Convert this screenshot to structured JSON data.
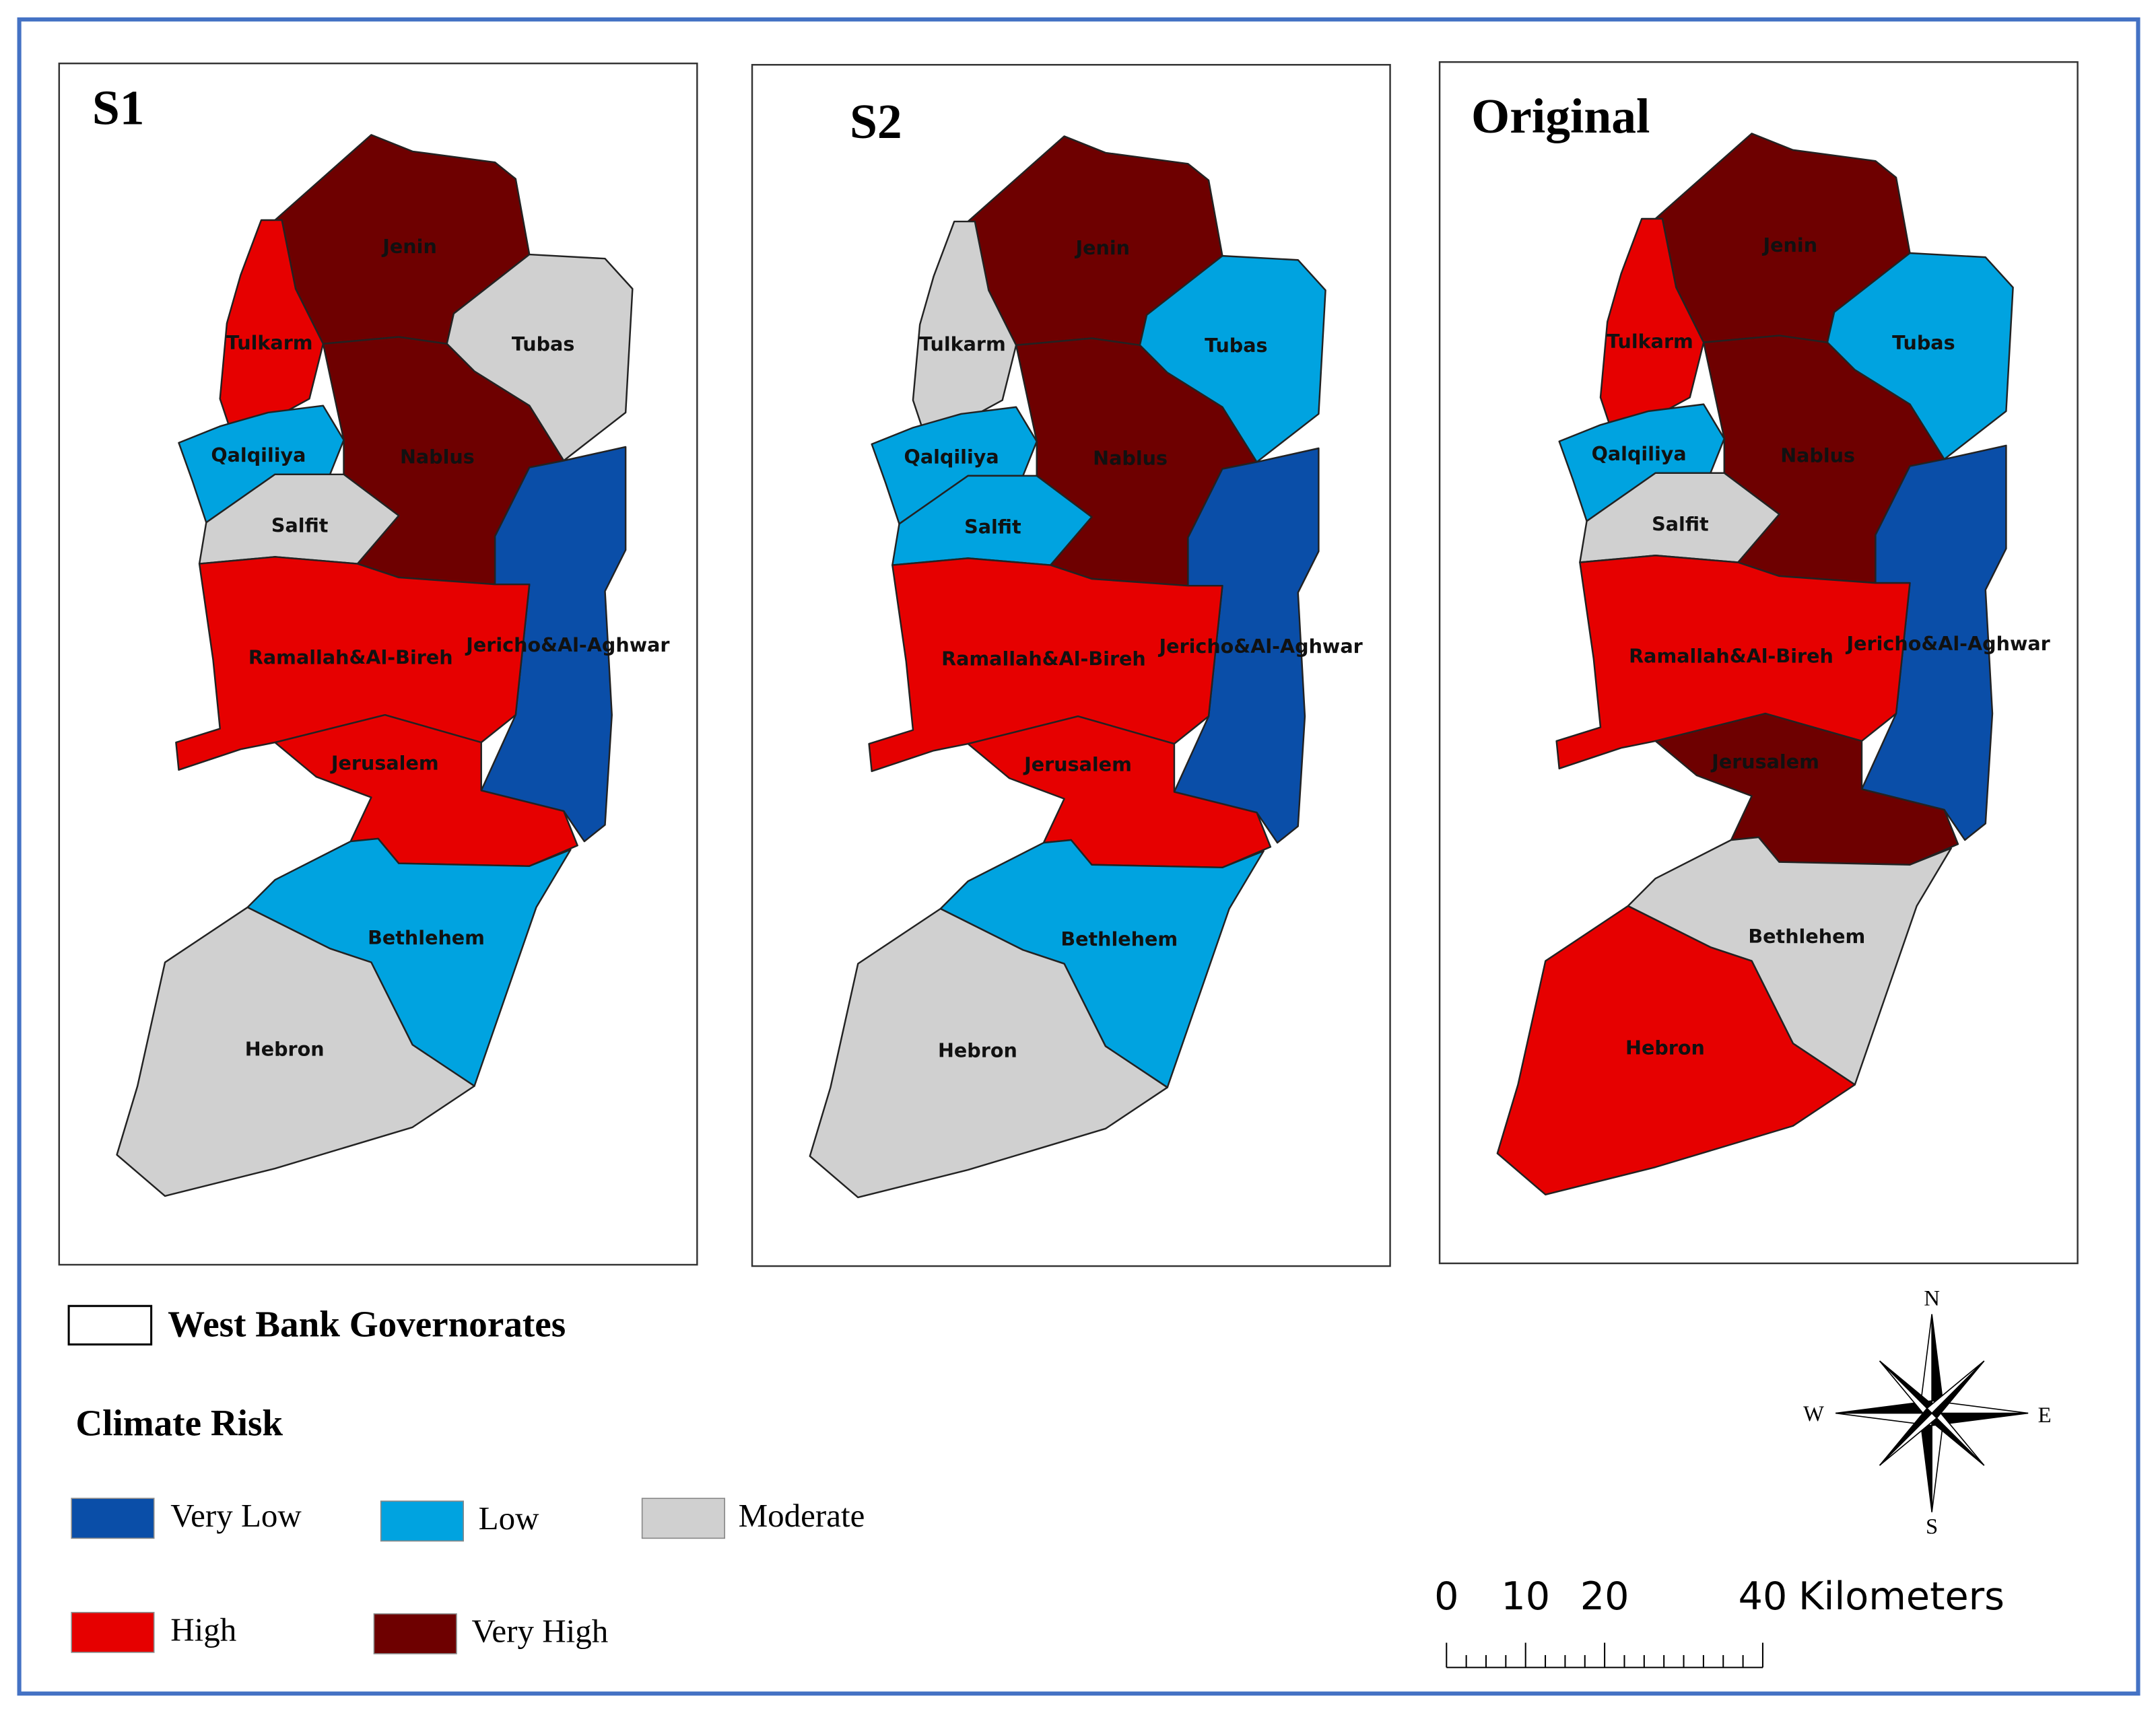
{
  "panels": [
    {
      "title": "S1",
      "regions": [
        {
          "name": "Jenin",
          "risk": "Very High"
        },
        {
          "name": "Tulkarm",
          "risk": "High"
        },
        {
          "name": "Tubas",
          "risk": "Moderate"
        },
        {
          "name": "Qalqiliya",
          "risk": "Low"
        },
        {
          "name": "Nablus",
          "risk": "Very High"
        },
        {
          "name": "Salfit",
          "risk": "Moderate"
        },
        {
          "name": "Jericho&Al-Aghwar",
          "risk": "Very Low"
        },
        {
          "name": "Ramallah&Al-Bireh",
          "risk": "High"
        },
        {
          "name": "Jerusalem",
          "risk": "High"
        },
        {
          "name": "Bethlehem",
          "risk": "Low"
        },
        {
          "name": "Hebron",
          "risk": "Moderate"
        }
      ]
    },
    {
      "title": "S2",
      "regions": [
        {
          "name": "Jenin",
          "risk": "Very High"
        },
        {
          "name": "Tulkarm",
          "risk": "Moderate"
        },
        {
          "name": "Tubas",
          "risk": "Low"
        },
        {
          "name": "Qalqiliya",
          "risk": "Low"
        },
        {
          "name": "Nablus",
          "risk": "Very High"
        },
        {
          "name": "Salfit",
          "risk": "Low"
        },
        {
          "name": "Jericho&Al-Aghwar",
          "risk": "Very Low"
        },
        {
          "name": "Ramallah&Al-Bireh",
          "risk": "High"
        },
        {
          "name": "Jerusalem",
          "risk": "High"
        },
        {
          "name": "Bethlehem",
          "risk": "Low"
        },
        {
          "name": "Hebron",
          "risk": "Moderate"
        }
      ]
    },
    {
      "title": "Original",
      "regions": [
        {
          "name": "Jenin",
          "risk": "Very High"
        },
        {
          "name": "Tulkarm",
          "risk": "High"
        },
        {
          "name": "Tubas",
          "risk": "Low"
        },
        {
          "name": "Qalqiliya",
          "risk": "Low"
        },
        {
          "name": "Nablus",
          "risk": "Very High"
        },
        {
          "name": "Salfit",
          "risk": "Moderate"
        },
        {
          "name": "Jericho&Al-Aghwar",
          "risk": "Very Low"
        },
        {
          "name": "Ramallah&Al-Bireh",
          "risk": "High"
        },
        {
          "name": "Jerusalem",
          "risk": "Very High"
        },
        {
          "name": "Bethlehem",
          "risk": "Moderate"
        },
        {
          "name": "Hebron",
          "risk": "High"
        }
      ]
    }
  ],
  "legend": {
    "boundary": "West Bank Governorates",
    "title": "Climate Risk",
    "items": [
      {
        "label": "Very Low",
        "color": "#0a4ea8"
      },
      {
        "label": "Low",
        "color": "#00a3e0"
      },
      {
        "label": "Moderate",
        "color": "#d0d0d0"
      },
      {
        "label": "High",
        "color": "#e60000"
      },
      {
        "label": "Very High",
        "color": "#6e0000"
      }
    ]
  },
  "compass": {
    "n": "N",
    "s": "S",
    "e": "E",
    "w": "W"
  },
  "scale_bar": {
    "ticks": [
      0,
      10,
      20,
      40
    ],
    "unit": "Kilometers"
  }
}
